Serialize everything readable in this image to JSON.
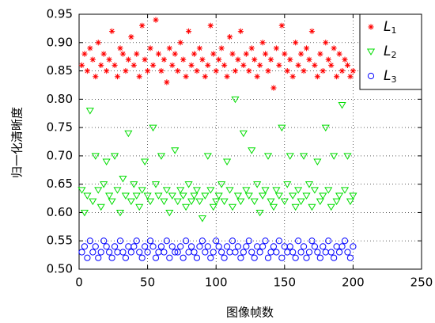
{
  "chart_data": {
    "type": "scatter",
    "x_label": "图像帧数",
    "y_label": "归一化清晰度",
    "xlim": [
      0,
      250
    ],
    "xticks": [
      0,
      50,
      100,
      150,
      200,
      250
    ],
    "ylim": [
      0.5,
      0.95
    ],
    "yticks": [
      {
        "value": 0.5,
        "label": "0.50"
      },
      0.55,
      {
        "value": 0.6,
        "label": "0.60"
      },
      0.65,
      {
        "value": 0.7,
        "label": "0.70"
      },
      0.75,
      {
        "value": 0.8,
        "label": "0.80"
      },
      0.85,
      {
        "value": 0.9,
        "label": "0.90"
      },
      0.95
    ],
    "grid": true,
    "legend": "top-right",
    "x": [
      2,
      4,
      6,
      8,
      10,
      12,
      14,
      16,
      18,
      20,
      22,
      24,
      26,
      28,
      30,
      32,
      34,
      36,
      38,
      40,
      42,
      44,
      46,
      48,
      50,
      52,
      54,
      56,
      58,
      60,
      62,
      64,
      66,
      68,
      70,
      72,
      74,
      76,
      78,
      80,
      82,
      84,
      86,
      88,
      90,
      92,
      94,
      96,
      98,
      100,
      102,
      104,
      106,
      108,
      110,
      112,
      114,
      116,
      118,
      120,
      122,
      124,
      126,
      128,
      130,
      132,
      134,
      136,
      138,
      140,
      142,
      144,
      146,
      148,
      150,
      152,
      154,
      156,
      158,
      160,
      162,
      164,
      166,
      168,
      170,
      172,
      174,
      176,
      178,
      180,
      182,
      184,
      186,
      188,
      190,
      192,
      194,
      196,
      198,
      200
    ],
    "series": [
      {
        "name": "L1",
        "color": "#ff0000",
        "marker": "star",
        "values": [
          0.86,
          0.88,
          0.85,
          0.89,
          0.87,
          0.84,
          0.9,
          0.86,
          0.88,
          0.85,
          0.87,
          0.92,
          0.86,
          0.84,
          0.89,
          0.88,
          0.85,
          0.87,
          0.91,
          0.86,
          0.88,
          0.84,
          0.93,
          0.87,
          0.85,
          0.89,
          0.86,
          0.94,
          0.88,
          0.85,
          0.87,
          0.83,
          0.89,
          0.86,
          0.88,
          0.85,
          0.9,
          0.87,
          0.84,
          0.92,
          0.86,
          0.88,
          0.85,
          0.89,
          0.87,
          0.84,
          0.86,
          0.93,
          0.88,
          0.85,
          0.87,
          0.89,
          0.86,
          0.84,
          0.91,
          0.88,
          0.85,
          0.87,
          0.92,
          0.86,
          0.88,
          0.85,
          0.89,
          0.87,
          0.84,
          0.86,
          0.9,
          0.88,
          0.85,
          0.87,
          0.82,
          0.89,
          0.86,
          0.93,
          0.88,
          0.85,
          0.87,
          0.84,
          0.9,
          0.86,
          0.88,
          0.85,
          0.89,
          0.87,
          0.92,
          0.86,
          0.84,
          0.88,
          0.85,
          0.9,
          0.87,
          0.86,
          0.89,
          0.84,
          0.88,
          0.85,
          0.87,
          0.86,
          0.84,
          0.85
        ]
      },
      {
        "name": "L2",
        "color": "#00dd00",
        "marker": "triangle-down",
        "values": [
          0.64,
          0.6,
          0.63,
          0.78,
          0.62,
          0.7,
          0.64,
          0.61,
          0.65,
          0.69,
          0.63,
          0.62,
          0.7,
          0.64,
          0.6,
          0.66,
          0.63,
          0.74,
          0.62,
          0.65,
          0.63,
          0.61,
          0.64,
          0.69,
          0.63,
          0.62,
          0.75,
          0.65,
          0.63,
          0.7,
          0.62,
          0.64,
          0.6,
          0.63,
          0.71,
          0.62,
          0.64,
          0.63,
          0.61,
          0.65,
          0.62,
          0.63,
          0.64,
          0.62,
          0.59,
          0.63,
          0.7,
          0.64,
          0.61,
          0.62,
          0.63,
          0.65,
          0.62,
          0.69,
          0.64,
          0.61,
          0.8,
          0.63,
          0.62,
          0.74,
          0.64,
          0.63,
          0.71,
          0.62,
          0.65,
          0.6,
          0.63,
          0.64,
          0.7,
          0.62,
          0.61,
          0.64,
          0.63,
          0.75,
          0.62,
          0.65,
          0.7,
          0.63,
          0.61,
          0.64,
          0.62,
          0.7,
          0.63,
          0.65,
          0.61,
          0.64,
          0.69,
          0.62,
          0.63,
          0.75,
          0.64,
          0.61,
          0.7,
          0.62,
          0.63,
          0.79,
          0.64,
          0.7,
          0.62,
          0.63
        ]
      },
      {
        "name": "L3",
        "color": "#0000ff",
        "marker": "circle",
        "values": [
          0.53,
          0.54,
          0.52,
          0.55,
          0.53,
          0.54,
          0.52,
          0.53,
          0.55,
          0.54,
          0.53,
          0.52,
          0.54,
          0.53,
          0.55,
          0.53,
          0.52,
          0.54,
          0.53,
          0.54,
          0.55,
          0.53,
          0.52,
          0.54,
          0.53,
          0.55,
          0.54,
          0.52,
          0.53,
          0.54,
          0.53,
          0.55,
          0.52,
          0.54,
          0.53,
          0.53,
          0.54,
          0.52,
          0.55,
          0.53,
          0.54,
          0.53,
          0.52,
          0.54,
          0.55,
          0.53,
          0.54,
          0.52,
          0.53,
          0.55,
          0.54,
          0.53,
          0.52,
          0.54,
          0.53,
          0.55,
          0.53,
          0.54,
          0.52,
          0.53,
          0.54,
          0.55,
          0.53,
          0.52,
          0.54,
          0.53,
          0.54,
          0.55,
          0.52,
          0.53,
          0.54,
          0.53,
          0.55,
          0.52,
          0.54,
          0.53,
          0.54,
          0.53,
          0.52,
          0.55,
          0.53,
          0.54,
          0.52,
          0.53,
          0.55,
          0.54,
          0.53,
          0.52,
          0.54,
          0.53,
          0.55,
          0.53,
          0.52,
          0.54,
          0.53,
          0.54,
          0.55,
          0.53,
          0.52,
          0.54
        ]
      }
    ]
  }
}
